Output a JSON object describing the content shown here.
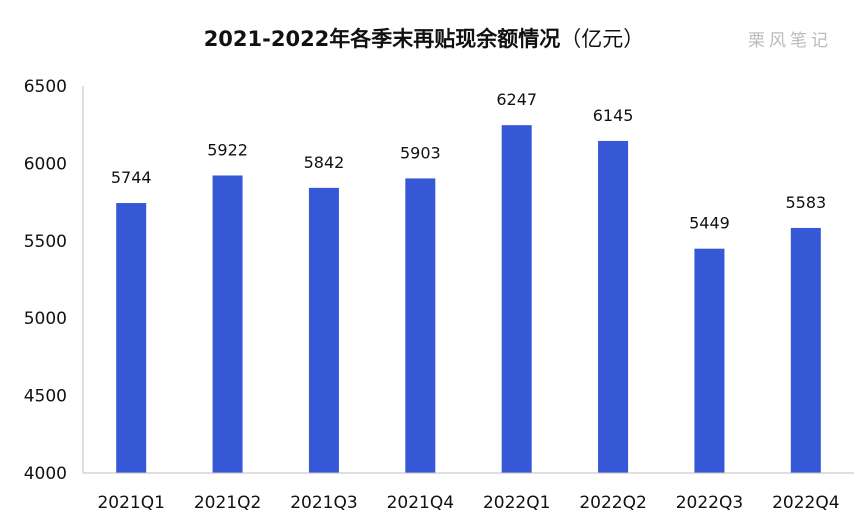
{
  "title_main": "2021-2022年各季末再贴现余额情况",
  "title_unit": "（亿元）",
  "watermark": "栗风笔记",
  "colors": {
    "bar": "#3758D6",
    "axis": "#BFBFBF",
    "text": "#111111"
  },
  "chart_data": {
    "type": "bar",
    "title": "2021-2022年各季末再贴现余额情况（亿元）",
    "categories": [
      "2021Q1",
      "2021Q2",
      "2021Q3",
      "2021Q4",
      "2022Q1",
      "2022Q2",
      "2022Q3",
      "2022Q4"
    ],
    "values": [
      5744,
      5922,
      5842,
      5903,
      6247,
      6145,
      5449,
      5583
    ],
    "ylim": [
      4000,
      6500
    ],
    "yticks": [
      4000,
      4500,
      5000,
      5500,
      6000,
      6500
    ],
    "xlabel": "",
    "ylabel": "",
    "grid": false,
    "legend": "none"
  }
}
